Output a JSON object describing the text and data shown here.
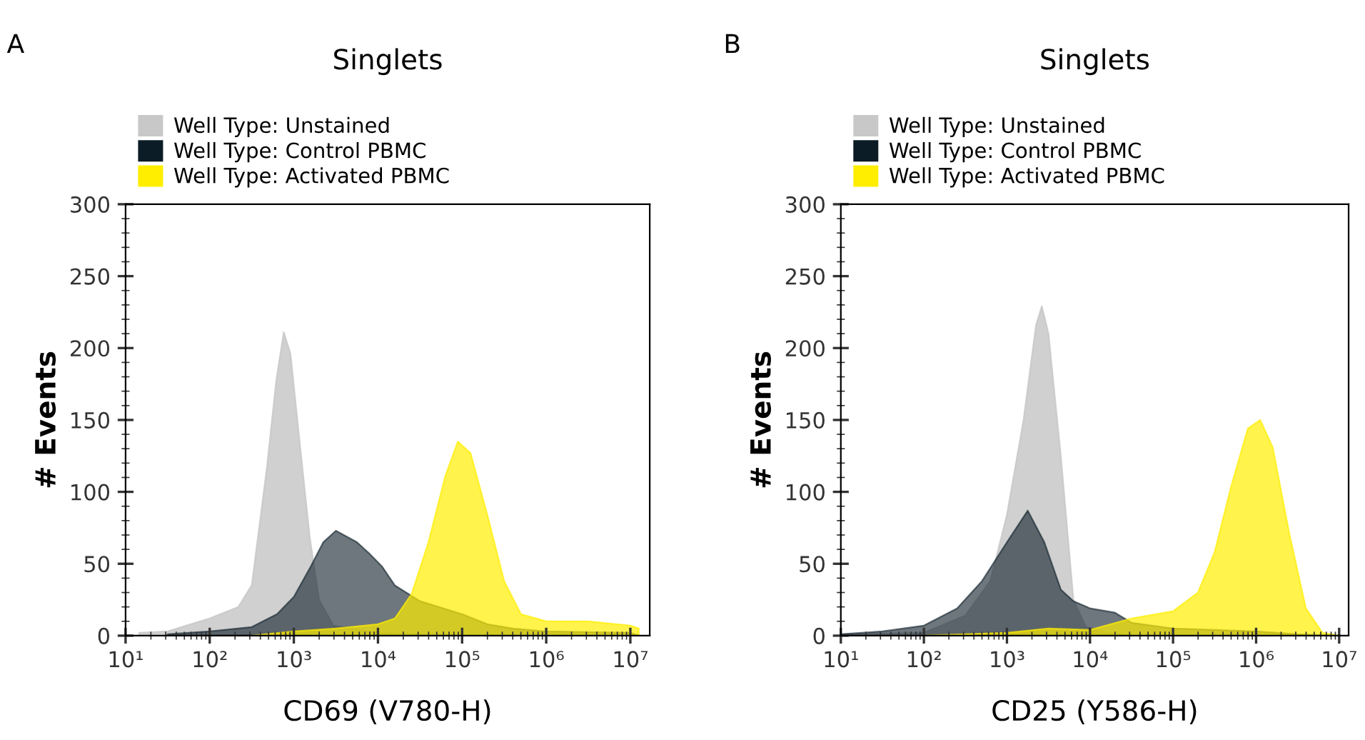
{
  "chart_data": [
    {
      "type": "area",
      "title": "Singlets",
      "xlabel": "CD69 (V780-H)",
      "ylabel": "# Events",
      "annotations": [
        "A"
      ],
      "log": "x",
      "legend": "top",
      "grid": false,
      "xlim": [
        10,
        17000000
      ],
      "ylim": [
        0,
        300
      ],
      "yticks": [
        0,
        50,
        100,
        150,
        200,
        250,
        300
      ],
      "xticks": [
        {
          "value": 10,
          "label": "10¹"
        },
        {
          "value": 100,
          "label": "10²"
        },
        {
          "value": 1000,
          "label": "10³"
        },
        {
          "value": 10000,
          "label": "10⁴"
        },
        {
          "value": 100000,
          "label": "10⁵"
        },
        {
          "value": 1000000,
          "label": "10⁶"
        },
        {
          "value": 10000000,
          "label": "10⁷"
        }
      ],
      "series": [
        {
          "name": "Well Type: Unstained",
          "color": "#c8c8c8",
          "x": [
            14.5,
            31.6,
            100,
            219,
            316,
            479,
            617,
            759,
            912,
            1175,
            1549,
            1995,
            2951,
            10000,
            31600,
            100000
          ],
          "values": [
            2,
            3,
            12,
            20,
            35,
            117,
            177,
            211,
            196,
            134,
            68,
            25,
            7,
            2,
            1,
            0
          ]
        },
        {
          "name": "Well Type: Control PBMC",
          "color": "#0b1c26",
          "x": [
            31.6,
            100,
            316,
            631,
            1000,
            1585,
            2239,
            3162,
            5623,
            7943,
            11220,
            15850,
            31600,
            100000,
            199500,
            398000,
            1000000,
            10000000,
            12600000
          ],
          "values": [
            1,
            3,
            6,
            15,
            27,
            48,
            65,
            73,
            65,
            57,
            48,
            35,
            24,
            15,
            8,
            5,
            3,
            2,
            0
          ]
        },
        {
          "name": "Well Type: Activated PBMC",
          "color": "#ffee00",
          "x": [
            316,
            1000,
            3162,
            10000,
            15850,
            25120,
            39810,
            63100,
            89100,
            125900,
            199500,
            316200,
            501200,
            1000000,
            3162000,
            10000000,
            12600000
          ],
          "values": [
            0,
            3,
            5,
            8,
            12,
            29,
            65,
            111,
            135,
            127,
            84,
            38,
            15,
            10,
            10,
            7,
            5
          ]
        }
      ]
    },
    {
      "type": "area",
      "title": "Singlets",
      "xlabel": "CD25 (Y586-H)",
      "ylabel": "# Events",
      "annotations": [
        "B"
      ],
      "log": "x",
      "legend": "top",
      "grid": false,
      "xlim": [
        10,
        13000000
      ],
      "ylim": [
        0,
        300
      ],
      "yticks": [
        0,
        50,
        100,
        150,
        200,
        250,
        300
      ],
      "xticks": [
        {
          "value": 10,
          "label": "10¹"
        },
        {
          "value": 100,
          "label": "10²"
        },
        {
          "value": 1000,
          "label": "10³"
        },
        {
          "value": 10000,
          "label": "10⁴"
        },
        {
          "value": 100000,
          "label": "10⁵"
        },
        {
          "value": 1000000,
          "label": "10⁶"
        },
        {
          "value": 10000000,
          "label": "10⁷"
        }
      ],
      "series": [
        {
          "name": "Well Type: Unstained",
          "color": "#c8c8c8",
          "x": [
            10,
            100,
            316,
            631,
            1000,
            1585,
            2239,
            2630,
            3162,
            4467,
            6310,
            8913,
            15850,
            31600
          ],
          "values": [
            1,
            2,
            14,
            38,
            84,
            150,
            216,
            229,
            210,
            124,
            25,
            6,
            2,
            0
          ]
        },
        {
          "name": "Well Type: Control PBMC",
          "color": "#0b1c26",
          "x": [
            10,
            31.6,
            100,
            251,
            501,
            1000,
            1778,
            2818,
            4467,
            6310,
            10000,
            19950,
            31600,
            100000,
            316200,
            1000000,
            3162000,
            10000000
          ],
          "values": [
            1,
            3,
            7,
            19,
            38,
            65,
            87,
            65,
            32,
            24,
            19,
            16,
            9,
            5,
            4,
            3,
            1,
            0
          ]
        },
        {
          "name": "Well Type: Activated PBMC",
          "color": "#ffee00",
          "x": [
            100,
            1000,
            3162,
            10000,
            31600,
            100000,
            199500,
            316200,
            501200,
            794300,
            1122000,
            1585000,
            2512000,
            3981000,
            6310000,
            10000000
          ],
          "values": [
            0,
            2,
            5,
            4,
            12,
            17,
            30,
            58,
            104,
            144,
            150,
            131,
            71,
            19,
            2,
            0
          ]
        }
      ]
    }
  ]
}
